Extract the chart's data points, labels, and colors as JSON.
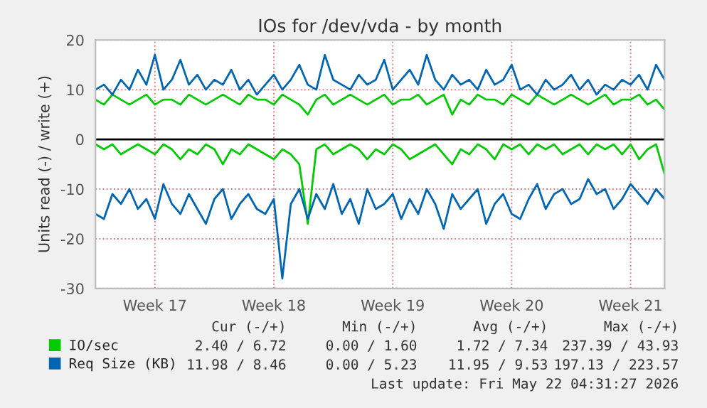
{
  "chart_data": {
    "type": "line",
    "title": "IOs for /dev/vda - by month",
    "ylabel": "Units read (-) / write (+)",
    "categories": [
      null,
      null,
      null,
      null,
      null,
      null,
      null,
      "Week 17",
      null,
      null,
      null,
      null,
      null,
      null,
      null,
      null,
      null,
      null,
      null,
      null,
      null,
      "Week 18",
      null,
      null,
      null,
      null,
      null,
      null,
      null,
      null,
      null,
      null,
      null,
      null,
      null,
      "Week 19",
      null,
      null,
      null,
      null,
      null,
      null,
      null,
      null,
      null,
      null,
      null,
      null,
      null,
      "Week 20",
      null,
      null,
      null,
      null,
      null,
      null,
      null,
      null,
      null,
      null,
      null,
      null,
      null,
      "Week 21",
      null,
      null,
      null,
      null
    ],
    "series": [
      {
        "name": "IO/sec",
        "color": "#00cc00",
        "values": [
          8,
          7,
          9,
          8,
          7,
          8,
          9,
          7,
          8,
          8,
          7,
          9,
          8,
          7,
          8,
          9,
          8,
          7,
          9,
          8,
          8,
          7,
          9,
          8,
          7,
          5,
          8,
          9,
          7,
          8,
          9,
          8,
          7,
          8,
          9,
          7,
          8,
          8,
          9,
          7,
          8,
          9,
          5,
          8,
          7,
          9,
          8,
          8,
          7,
          9,
          8,
          7,
          9,
          8,
          7,
          8,
          9,
          8,
          7,
          8,
          9,
          7,
          8,
          8,
          9,
          7,
          8,
          6
        ]
      },
      {
        "color": "#00cc00",
        "values": [
          -1,
          -2,
          -1,
          -3,
          -2,
          -1,
          -2,
          -3,
          -1,
          -2,
          -4,
          -2,
          -3,
          -1,
          -2,
          -5,
          -2,
          -3,
          -1,
          -2,
          -3,
          -4,
          -2,
          -3,
          -5,
          -17,
          -2,
          -1,
          -3,
          -2,
          -1,
          -2,
          -4,
          -2,
          -3,
          -1,
          -2,
          -4,
          -3,
          -2,
          -1,
          -3,
          -5,
          -2,
          -3,
          -1,
          -2,
          -4,
          -1,
          -2,
          -1,
          -3,
          -1,
          -2,
          -1,
          -3,
          -2,
          -1,
          -3,
          -1,
          -2,
          -1,
          -3,
          -1,
          -4,
          -2,
          -1,
          -7
        ]
      },
      {
        "name": "Req Size (KB)",
        "color": "#0066b3",
        "values": [
          10,
          11,
          9,
          12,
          10,
          14,
          11,
          17,
          10,
          12,
          16,
          11,
          13,
          10,
          12,
          11,
          14,
          10,
          12,
          9,
          11,
          13,
          10,
          12,
          15,
          11,
          10,
          17,
          12,
          11,
          10,
          13,
          11,
          12,
          16,
          10,
          12,
          14,
          11,
          17,
          12,
          10,
          13,
          11,
          12,
          10,
          14,
          11,
          12,
          15,
          10,
          11,
          9,
          12,
          10,
          11,
          13,
          10,
          12,
          9,
          11,
          10,
          12,
          11,
          13,
          10,
          15,
          12
        ]
      },
      {
        "color": "#0066b3",
        "values": [
          -15,
          -16,
          -11,
          -13,
          -10,
          -14,
          -12,
          -16,
          -9,
          -13,
          -15,
          -11,
          -14,
          -17,
          -12,
          -10,
          -16,
          -13,
          -11,
          -14,
          -15,
          -12,
          -28,
          -13,
          -10,
          -16,
          -11,
          -14,
          -9,
          -15,
          -12,
          -17,
          -10,
          -14,
          -13,
          -11,
          -16,
          -12,
          -15,
          -10,
          -13,
          -18,
          -11,
          -14,
          -12,
          -10,
          -17,
          -13,
          -11,
          -15,
          -16,
          -12,
          -9,
          -14,
          -11,
          -10,
          -13,
          -12,
          -8,
          -11,
          -10,
          -14,
          -12,
          -9,
          -11,
          -13,
          -10,
          -12
        ]
      }
    ],
    "ylim": [
      -30,
      20
    ],
    "yticks": [
      -30,
      -20,
      -10,
      0,
      10,
      20
    ],
    "ref_lines": [
      {
        "axis": "y",
        "value": 0,
        "color": "#000000"
      }
    ],
    "grid": true,
    "legend": "bottom left",
    "marker": "none",
    "line_style": "solid",
    "annotations": [
      "Cur (-/+)",
      "Min (-/+)",
      "Avg (-/+)",
      "Max (-/+)",
      "2.40 / 6.72",
      "0.00 / 1.60",
      "1.72 / 7.34",
      "237.39 / 43.93",
      "11.98 / 8.46",
      "0.00 / 5.23",
      "11.95 / 9.53",
      "197.13 / 223.57",
      "Last update: Fri May 22 04:31:27 2026"
    ]
  }
}
